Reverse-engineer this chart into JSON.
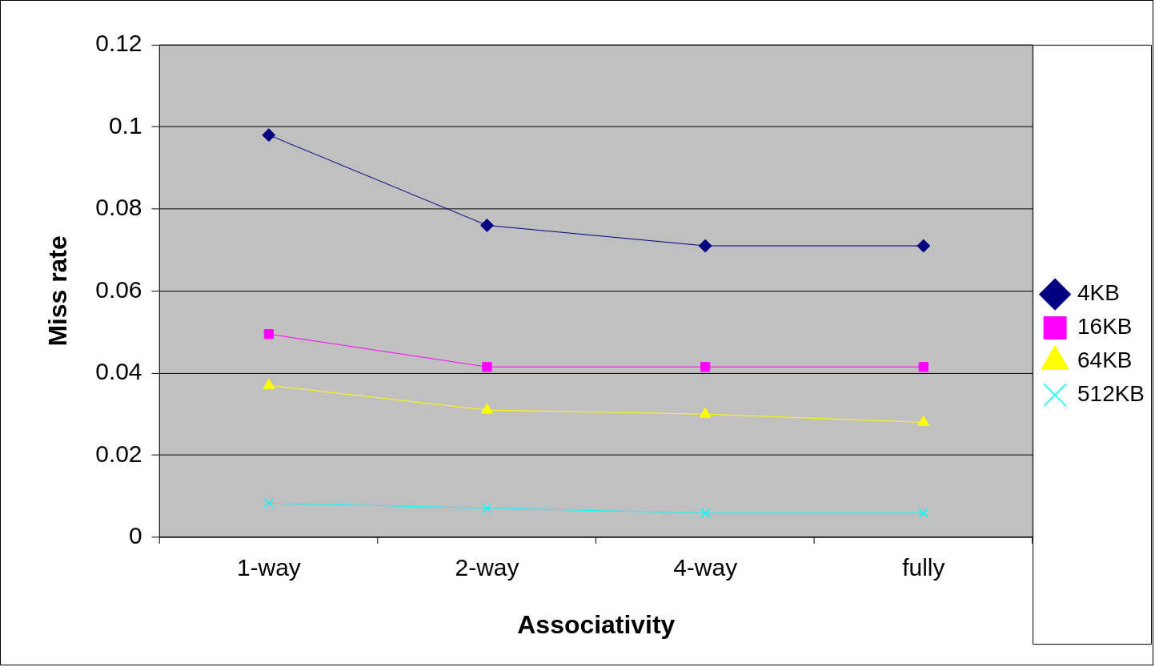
{
  "chart_data": {
    "type": "line",
    "xlabel": "Associativity",
    "ylabel": "Miss rate",
    "categories": [
      "1-way",
      "2-way",
      "4-way",
      "fully"
    ],
    "series": [
      {
        "name": "4KB",
        "color": "#000080",
        "marker": "diamond",
        "values": [
          0.098,
          0.076,
          0.071,
          0.071
        ]
      },
      {
        "name": "16KB",
        "color": "#ff00ff",
        "marker": "square",
        "values": [
          0.0495,
          0.0415,
          0.0415,
          0.0415
        ]
      },
      {
        "name": "64KB",
        "color": "#ffff00",
        "marker": "triangle",
        "values": [
          0.037,
          0.031,
          0.03,
          0.028
        ]
      },
      {
        "name": "512KB",
        "color": "#00ffff",
        "marker": "cross",
        "values": [
          0.0083,
          0.0071,
          0.0059,
          0.0059
        ]
      }
    ],
    "ylim": [
      0,
      0.12
    ],
    "yticks": [
      0,
      0.02,
      0.04,
      0.06,
      0.08,
      0.1,
      0.12
    ],
    "grid": "y",
    "legend": "right",
    "line_style": "solid"
  }
}
